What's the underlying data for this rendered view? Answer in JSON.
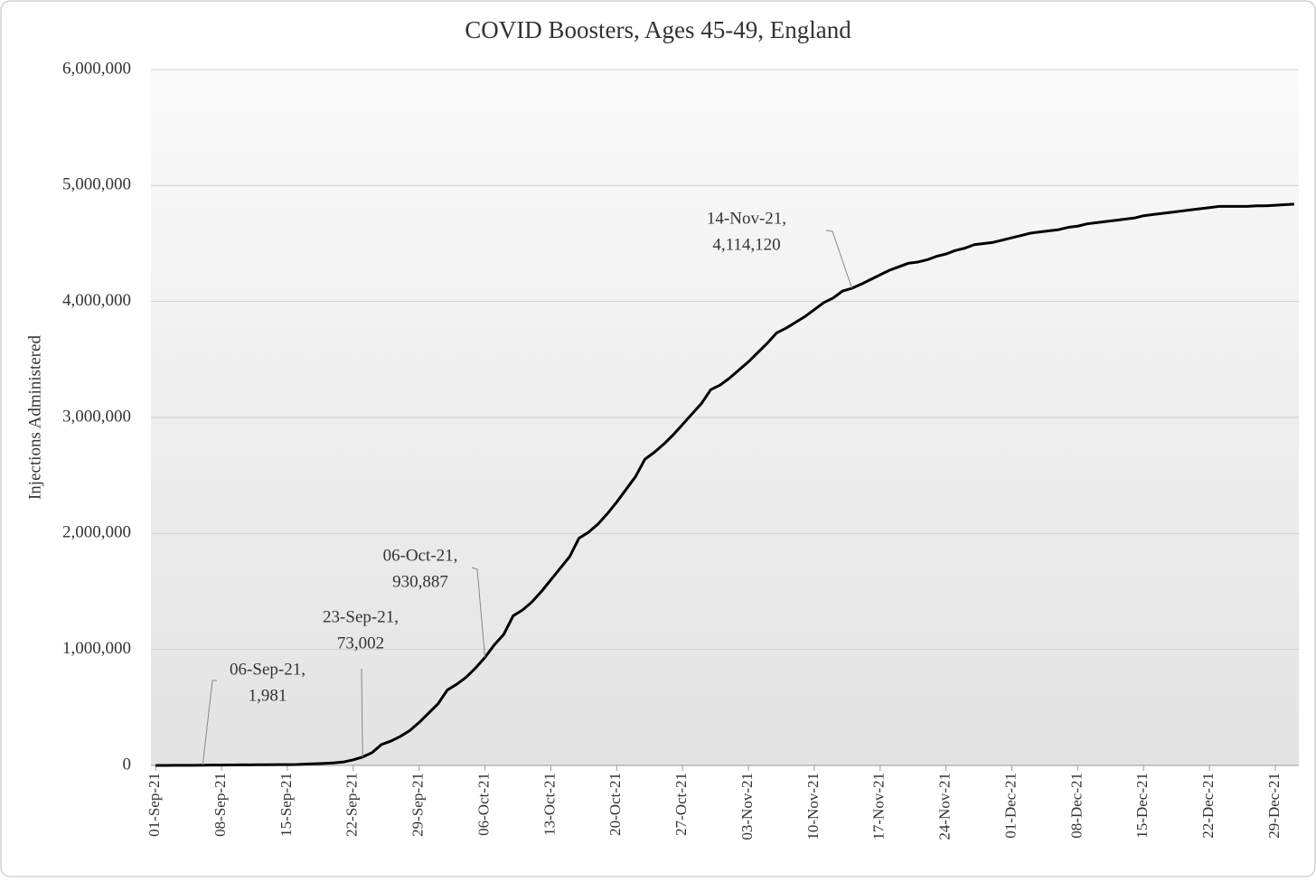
{
  "chart_data": {
    "type": "line",
    "title": "COVID Boosters, Ages 45-49, England",
    "y_label": "Injections Administered",
    "categories": [
      "01-Sep-21",
      null,
      null,
      null,
      null,
      null,
      null,
      "08-Sep-21",
      null,
      null,
      null,
      null,
      null,
      null,
      "15-Sep-21",
      null,
      null,
      null,
      null,
      null,
      null,
      "22-Sep-21",
      null,
      null,
      null,
      null,
      null,
      null,
      "29-Sep-21",
      null,
      null,
      null,
      null,
      null,
      null,
      "06-Oct-21",
      null,
      null,
      null,
      null,
      null,
      null,
      "13-Oct-21",
      null,
      null,
      null,
      null,
      null,
      null,
      "20-Oct-21",
      null,
      null,
      null,
      null,
      null,
      null,
      "27-Oct-21",
      null,
      null,
      null,
      null,
      null,
      null,
      "03-Nov-21",
      null,
      null,
      null,
      null,
      null,
      null,
      "10-Nov-21",
      null,
      null,
      null,
      null,
      null,
      null,
      "17-Nov-21",
      null,
      null,
      null,
      null,
      null,
      null,
      "24-Nov-21",
      null,
      null,
      null,
      null,
      null,
      null,
      "01-Dec-21",
      null,
      null,
      null,
      null,
      null,
      null,
      "08-Dec-21",
      null,
      null,
      null,
      null,
      null,
      null,
      "15-Dec-21",
      null,
      null,
      null,
      null,
      null,
      null,
      "22-Dec-21",
      null,
      null,
      null,
      null,
      null,
      null,
      "29-Dec-21",
      null,
      null
    ],
    "series": [
      {
        "name": "Injections Administered",
        "color": "#000000",
        "values": [
          100,
          300,
          600,
          900,
          1400,
          1981,
          2500,
          3000,
          3500,
          4500,
          5000,
          5500,
          6000,
          6500,
          7000,
          8000,
          12000,
          15000,
          18000,
          22000,
          30000,
          48000,
          73002,
          110000,
          180000,
          210000,
          250000,
          300000,
          370000,
          450000,
          530000,
          650000,
          700000,
          760000,
          840000,
          930887,
          1040000,
          1130000,
          1290000,
          1340000,
          1410000,
          1500000,
          1600000,
          1700000,
          1800000,
          1960000,
          2010000,
          2080000,
          2170000,
          2270000,
          2380000,
          2490000,
          2640000,
          2700000,
          2770000,
          2850000,
          2940000,
          3030000,
          3120000,
          3240000,
          3280000,
          3340000,
          3410000,
          3480000,
          3560000,
          3640000,
          3730000,
          3770000,
          3820000,
          3870000,
          3930000,
          3990000,
          4030000,
          4090000,
          4114120,
          4150000,
          4190000,
          4230000,
          4270000,
          4300000,
          4330000,
          4340000,
          4360000,
          4390000,
          4410000,
          4440000,
          4460000,
          4490000,
          4500000,
          4510000,
          4530000,
          4550000,
          4570000,
          4590000,
          4600000,
          4610000,
          4620000,
          4640000,
          4650000,
          4670000,
          4680000,
          4690000,
          4700000,
          4710000,
          4720000,
          4740000,
          4750000,
          4760000,
          4770000,
          4780000,
          4790000,
          4800000,
          4810000,
          4820000,
          4820000,
          4820000,
          4820000,
          4825000,
          4825000,
          4830000,
          4835000,
          4840000
        ]
      }
    ],
    "ylim": [
      0,
      6000000
    ],
    "yticks": [
      0,
      {
        "value": 1000000,
        "label": "1,000,000"
      },
      {
        "value": 2000000,
        "label": "2,000,000"
      },
      {
        "value": 3000000,
        "label": "3,000,000"
      },
      {
        "value": 4000000,
        "label": "4,000,000"
      },
      {
        "value": 5000000,
        "label": "5,000,000"
      },
      {
        "value": 6000000,
        "label": "6,000,000"
      }
    ],
    "grid": true,
    "annotations": [
      {
        "date": "06-Sep-21,",
        "value": "1,981"
      },
      {
        "date": "23-Sep-21,",
        "value": "73,002"
      },
      {
        "date": "06-Oct-21,",
        "value": "930,887"
      },
      {
        "date": "14-Nov-21,",
        "value": "4,114,120"
      }
    ]
  }
}
